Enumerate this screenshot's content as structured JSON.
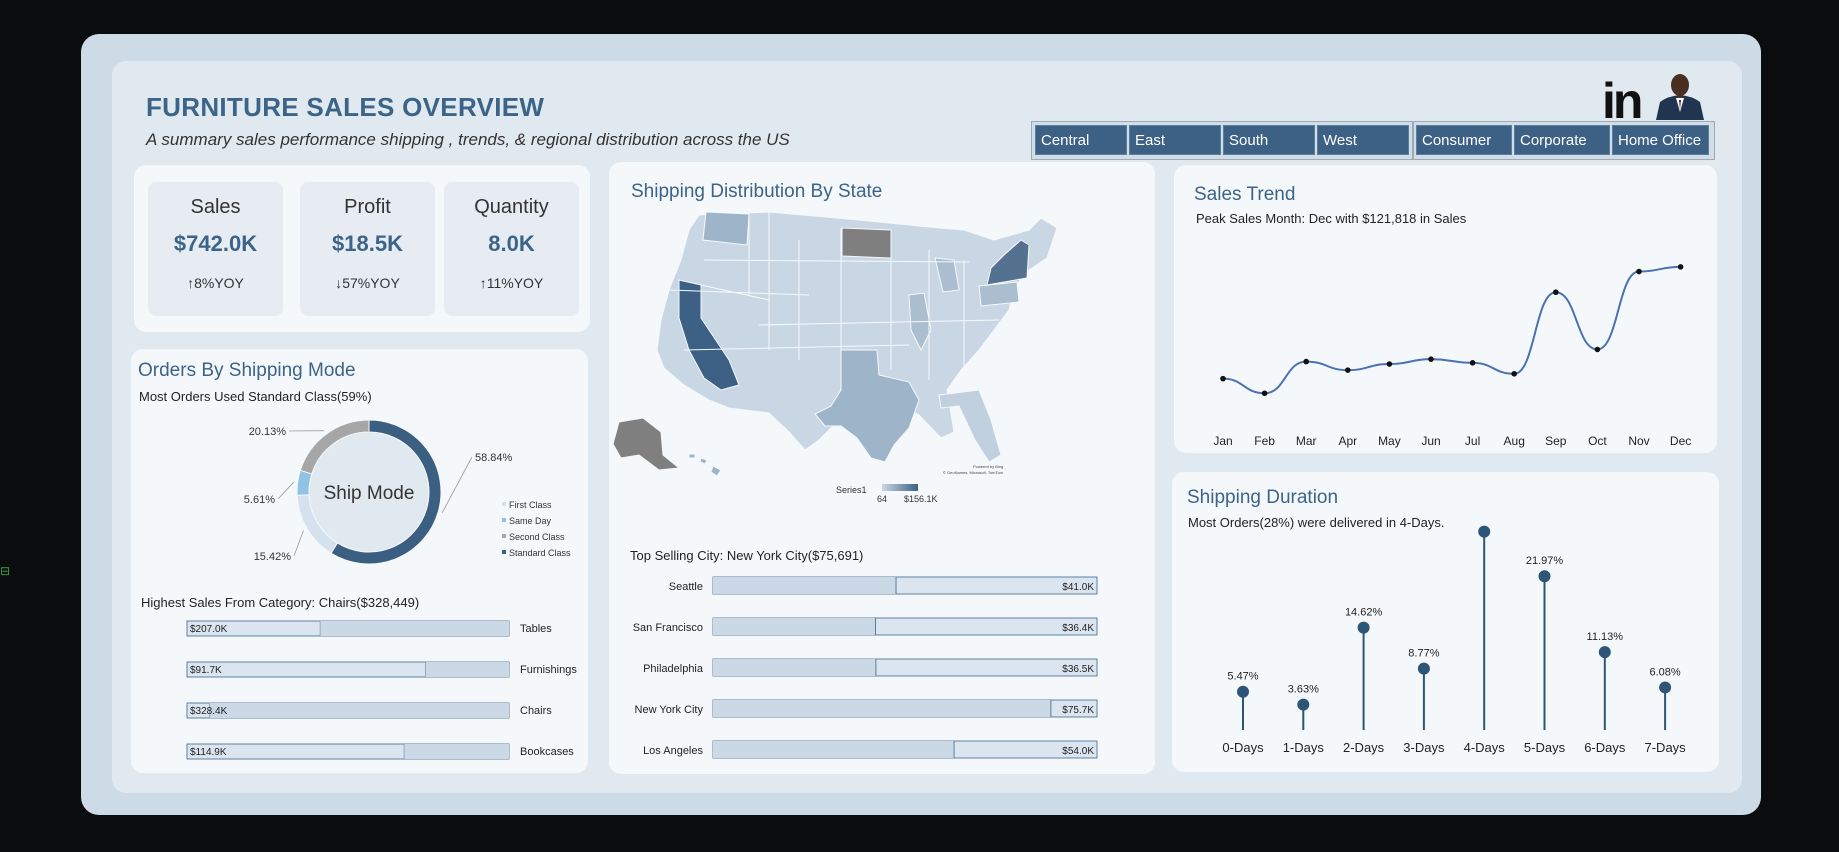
{
  "header": {
    "title": "FURNITURE SALES OVERVIEW",
    "subtitle": "A summary sales performance shipping , trends, & regional distribution across the US",
    "logo_text": "in"
  },
  "filters": {
    "region": [
      "Central",
      "East",
      "South",
      "West"
    ],
    "segment": [
      "Consumer",
      "Corporate",
      "Home Office"
    ]
  },
  "kpis": [
    {
      "label": "Sales",
      "value": "$742.0K",
      "yoy": "8%YOY",
      "arrow": "↑"
    },
    {
      "label": "Profit",
      "value": "$18.5K",
      "yoy": "57%YOY",
      "arrow": "↓"
    },
    {
      "label": "Quantity",
      "value": "8.0K",
      "yoy": "11%YOY",
      "arrow": "↑"
    }
  ],
  "ship_mode": {
    "title": "Orders By Shipping Mode",
    "subtitle": "Most Orders Used Standard Class(59%)",
    "center_label": "Ship Mode",
    "chart_data": {
      "type": "pie",
      "slices": [
        {
          "name": "First Class",
          "value": 15.42,
          "label": "15.42%",
          "color": "#d5e2ee"
        },
        {
          "name": "Same Day",
          "value": 5.61,
          "label": "5.61%",
          "color": "#8fc3e6"
        },
        {
          "name": "Second Class",
          "value": 20.13,
          "label": "20.13%",
          "color": "#a6a6a6"
        },
        {
          "name": "Standard Class",
          "value": 58.84,
          "label": "58.84%",
          "color": "#3b5f80"
        }
      ]
    }
  },
  "category": {
    "subtitle": "Highest Sales From Category: Chairs($328,449)",
    "chart_data": {
      "type": "bar",
      "categories": [
        "Tables",
        "Furnishings",
        "Chairs",
        "Bookcases"
      ],
      "values": [
        207.0,
        91.7,
        328.4,
        114.9
      ],
      "labels": [
        "$207.0K",
        "$91.7K",
        "$328.4K",
        "$114.9K"
      ],
      "unit": "K"
    }
  },
  "map": {
    "title": "Shipping Distribution By State",
    "legend_series": "Series1",
    "legend_min": "64",
    "legend_max": "$156.1K",
    "credit_line1": "Powered by Bing",
    "credit_line2": "© GeoNames, Microsoft, TomTom"
  },
  "city": {
    "subtitle": "Top Selling City: New York City($75,691)",
    "chart_data": {
      "type": "bar",
      "categories": [
        "Seattle",
        "San Francisco",
        "Philadelphia",
        "New York City",
        "Los Angeles"
      ],
      "values": [
        41.0,
        36.4,
        36.5,
        75.7,
        54.0
      ],
      "labels": [
        "$41.0K",
        "$36.4K",
        "$36.5K",
        "$75.7K",
        "$54.0K"
      ],
      "unit": "K"
    }
  },
  "trend": {
    "title": "Sales Trend",
    "subtitle": "Peak Sales Month: Dec with $121,818 in Sales",
    "chart_data": {
      "type": "line",
      "categories": [
        "Jan",
        "Feb",
        "Mar",
        "Apr",
        "May",
        "Jun",
        "Jul",
        "Aug",
        "Sep",
        "Oct",
        "Nov",
        "Dec"
      ],
      "values": [
        30000,
        18000,
        44000,
        37000,
        42000,
        46000,
        43000,
        34000,
        101000,
        54000,
        118000,
        121818
      ]
    }
  },
  "duration": {
    "title": "Shipping Duration",
    "subtitle": "Most Orders(28%) were delivered in 4-Days.",
    "chart_data": {
      "type": "scatter",
      "categories": [
        "0-Days",
        "1-Days",
        "2-Days",
        "3-Days",
        "4-Days",
        "5-Days",
        "6-Days",
        "7-Days"
      ],
      "values": [
        5.47,
        3.63,
        14.62,
        8.77,
        28.34,
        21.97,
        11.13,
        6.08
      ],
      "labels": [
        "5.47%",
        "3.63%",
        "14.62%",
        "8.77%",
        "28.34%",
        "21.97%",
        "11.13%",
        "6.08%"
      ]
    }
  },
  "colors": {
    "accent": "#3c6488",
    "bar_fill": "#cfdcea",
    "dark_state": "#3d6184",
    "light_state": "#c8d6e3",
    "gray_state": "#7f7f7f"
  }
}
